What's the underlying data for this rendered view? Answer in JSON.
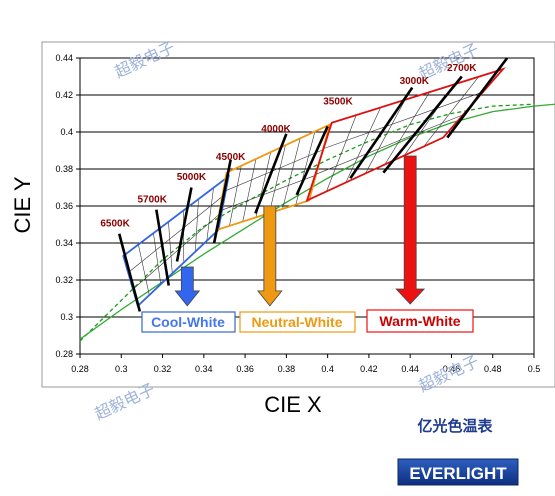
{
  "chart_data": {
    "type": "line",
    "xlabel": "CIE X",
    "ylabel": "CIE Y",
    "xlim": [
      0.28,
      0.5
    ],
    "ylim": [
      0.28,
      0.44
    ],
    "x_ticks": [
      "0.28",
      "0.3",
      "0.32",
      "0.34",
      "0.36",
      "0.38",
      "0.4",
      "0.42",
      "0.44",
      "0.46",
      "0.48",
      "0.5"
    ],
    "y_ticks": [
      "0.28",
      "0.3",
      "0.32",
      "0.34",
      "0.36",
      "0.38",
      "0.4",
      "0.42",
      "0.44"
    ],
    "grid": "horizontal",
    "cct_labels": [
      {
        "text": "6500K",
        "x": 0.297,
        "y": 0.349
      },
      {
        "text": "5700K",
        "x": 0.315,
        "y": 0.362
      },
      {
        "text": "5000K",
        "x": 0.334,
        "y": 0.374
      },
      {
        "text": "4500K",
        "x": 0.353,
        "y": 0.385
      },
      {
        "text": "4000K",
        "x": 0.375,
        "y": 0.4
      },
      {
        "text": "3500K",
        "x": 0.405,
        "y": 0.415
      },
      {
        "text": "3000K",
        "x": 0.442,
        "y": 0.426
      },
      {
        "text": "2700K",
        "x": 0.465,
        "y": 0.433
      }
    ],
    "series": [
      {
        "color": "#1a9b1a",
        "style": "dashed",
        "x": [
          0.28,
          0.3,
          0.32,
          0.34,
          0.36,
          0.38,
          0.4,
          0.42,
          0.44,
          0.46,
          0.48,
          0.5
        ],
        "y": [
          0.287,
          0.309,
          0.331,
          0.349,
          0.362,
          0.374,
          0.385,
          0.395,
          0.404,
          0.41,
          0.414,
          0.415
        ]
      },
      {
        "color": "#33aa33",
        "style": "solid",
        "x": [
          0.28,
          0.3,
          0.32,
          0.34,
          0.36,
          0.38,
          0.4,
          0.42,
          0.44,
          0.46,
          0.48,
          0.5,
          0.51
        ],
        "y": [
          0.288,
          0.304,
          0.319,
          0.334,
          0.348,
          0.362,
          0.375,
          0.387,
          0.397,
          0.405,
          0.411,
          0.414,
          0.415
        ]
      }
    ],
    "bins": [
      {
        "name": "Cool-White",
        "color": "#3366dd",
        "corners": [
          [
            0.301,
            0.333
          ],
          [
            0.352,
            0.376
          ],
          [
            0.347,
            0.347
          ],
          [
            0.308,
            0.306
          ]
        ]
      },
      {
        "name": "Neutral-White",
        "color": "#ee9911",
        "corners": [
          [
            0.351,
            0.378
          ],
          [
            0.401,
            0.404
          ],
          [
            0.391,
            0.363
          ],
          [
            0.346,
            0.347
          ]
        ]
      },
      {
        "name": "Warm-White",
        "color": "#dd1111",
        "corners": [
          [
            0.402,
            0.405
          ],
          [
            0.485,
            0.434
          ],
          [
            0.456,
            0.397
          ],
          [
            0.39,
            0.363
          ]
        ]
      }
    ],
    "bin_lines": [
      [
        [
          0.299,
          0.345
        ],
        [
          0.309,
          0.303
        ]
      ],
      [
        [
          0.317,
          0.358
        ],
        [
          0.323,
          0.317
        ]
      ],
      [
        [
          0.334,
          0.37
        ],
        [
          0.327,
          0.33
        ]
      ],
      [
        [
          0.353,
          0.385
        ],
        [
          0.345,
          0.34
        ]
      ],
      [
        [
          0.38,
          0.399
        ],
        [
          0.365,
          0.356
        ]
      ],
      [
        [
          0.4,
          0.403
        ],
        [
          0.385,
          0.366
        ]
      ],
      [
        [
          0.441,
          0.424
        ],
        [
          0.411,
          0.375
        ]
      ],
      [
        [
          0.465,
          0.43
        ],
        [
          0.427,
          0.378
        ]
      ],
      [
        [
          0.487,
          0.44
        ],
        [
          0.458,
          0.397
        ]
      ]
    ],
    "arrows": [
      {
        "x": 0.332,
        "y_from": 0.327,
        "y_to": 0.306,
        "color": "#3366ee"
      },
      {
        "x": 0.372,
        "y_from": 0.36,
        "y_to": 0.306,
        "color": "#ee9911"
      },
      {
        "x": 0.44,
        "y_from": 0.387,
        "y_to": 0.307,
        "color": "#ee1111"
      }
    ],
    "legend": [
      {
        "label": "Cool-White",
        "color": "#4477ee",
        "border": "#3366cc"
      },
      {
        "label": "Neutral-White",
        "color": "#ee9911",
        "border": "#ee9911"
      },
      {
        "label": "Warm-White",
        "color": "#cc0000",
        "border": "#ee1111"
      }
    ]
  },
  "footer": {
    "chinese_title": "亿光色温表",
    "logo": "EVERLIGHT"
  },
  "watermark": "超毅电子"
}
